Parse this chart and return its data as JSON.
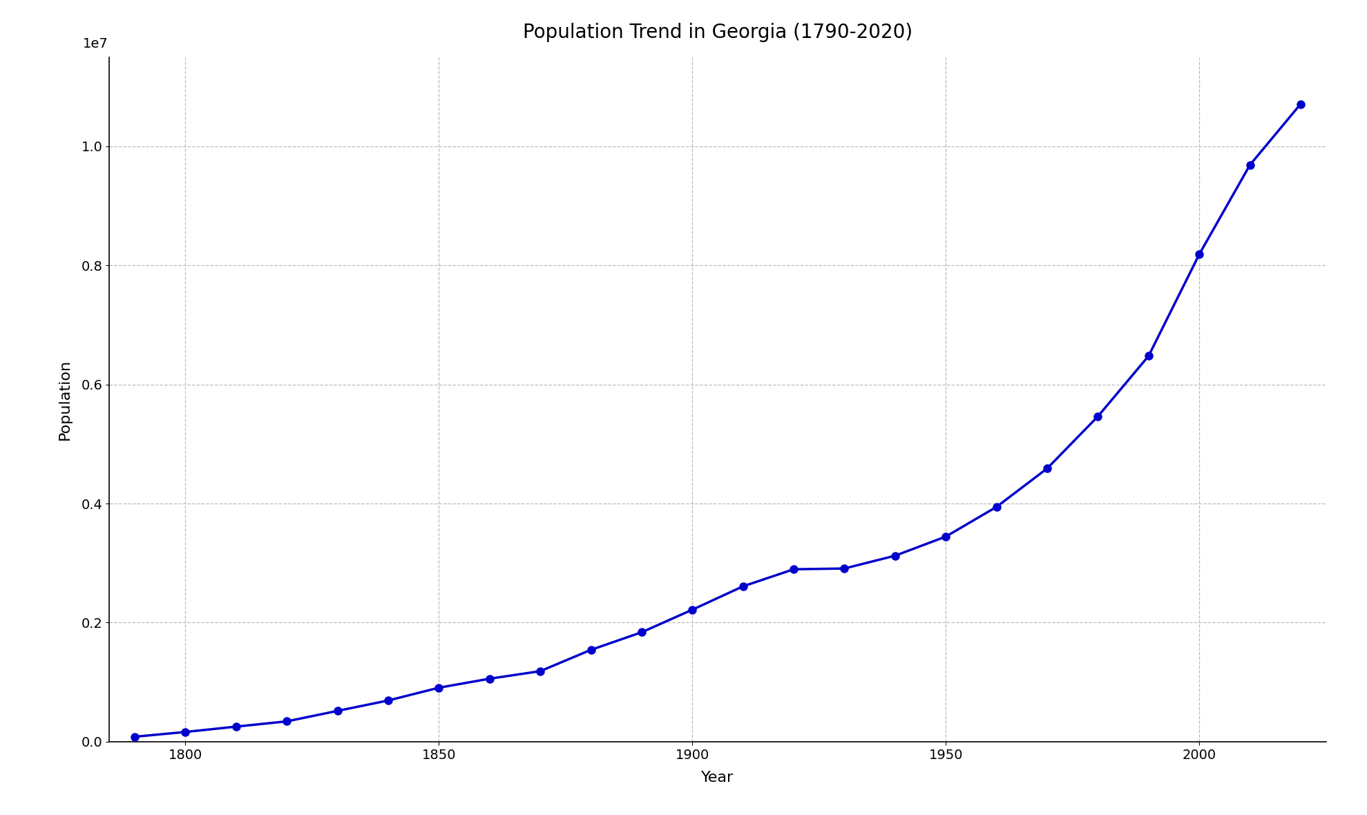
{
  "years": [
    1790,
    1800,
    1810,
    1820,
    1830,
    1840,
    1850,
    1860,
    1870,
    1880,
    1890,
    1900,
    1910,
    1920,
    1930,
    1940,
    1950,
    1960,
    1970,
    1980,
    1990,
    2000,
    2010,
    2020
  ],
  "population": [
    82548,
    162686,
    252433,
    340989,
    516823,
    691392,
    906185,
    1057286,
    1184109,
    1542180,
    1837353,
    2216331,
    2609121,
    2895832,
    2908506,
    3123723,
    3444578,
    3943116,
    4589575,
    5463105,
    6478216,
    8186453,
    9687653,
    10711908
  ],
  "line_color": "#0000cc",
  "marker_color": "#0000cc",
  "title": "Population Trend in Georgia (1790-2020)",
  "xlabel": "Year",
  "ylabel": "Population",
  "background_color": "#ffffff",
  "grid_color": "#bbbbbb",
  "title_fontsize": 20,
  "label_fontsize": 16,
  "tick_fontsize": 14,
  "xlim": [
    1785,
    2025
  ],
  "ylim": [
    0,
    11500000.0
  ],
  "linewidth": 2.5,
  "markersize": 8
}
